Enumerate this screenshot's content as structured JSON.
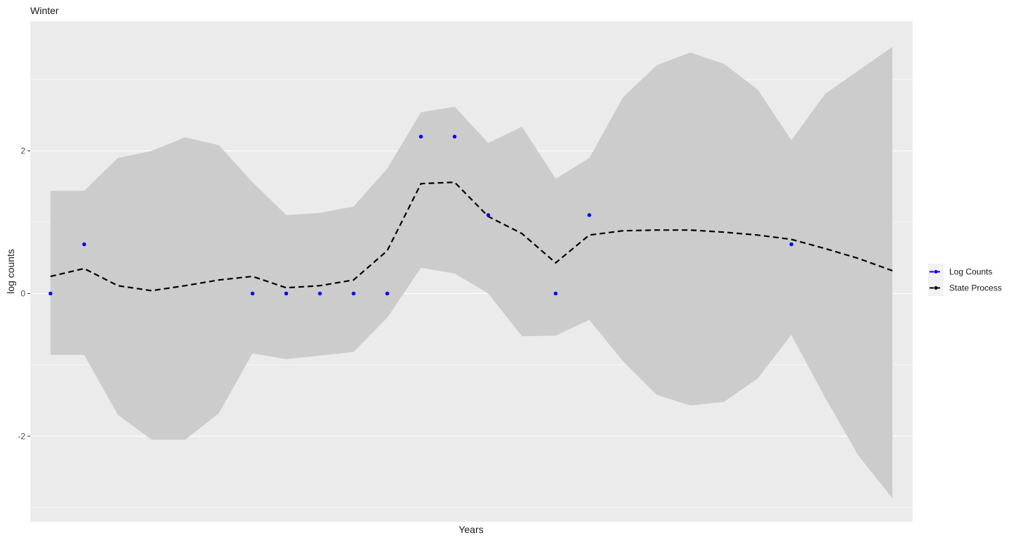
{
  "chart_data": {
    "type": "line",
    "title": "Winter",
    "xlabel": "Years",
    "ylabel": "log counts",
    "x": [
      1,
      2,
      3,
      4,
      5,
      6,
      7,
      8,
      9,
      10,
      11,
      12,
      13,
      14,
      15,
      16,
      17,
      18,
      19,
      20,
      21,
      22,
      23,
      24,
      25,
      26
    ],
    "xlim": [
      0.4,
      26.6
    ],
    "ylim": [
      -3.2,
      3.82
    ],
    "y_ticks": [
      -2,
      0,
      2
    ],
    "y_tick_labels": [
      "-2",
      "0",
      "2"
    ],
    "x_ticks": [],
    "grid": true,
    "legend_position": "right",
    "series": [
      {
        "name": "Log Counts",
        "style": "points",
        "color": "#0000ff",
        "x": [
          1,
          2,
          7,
          8,
          9,
          10,
          11,
          12,
          13,
          14,
          16,
          17,
          23
        ],
        "values": [
          0,
          0.69,
          0,
          0,
          0,
          0,
          0,
          2.2,
          2.2,
          1.1,
          0,
          1.1,
          0.69
        ]
      },
      {
        "name": "State Process",
        "style": "dashed-line",
        "color": "#000000",
        "x": [
          1,
          2,
          3,
          4,
          5,
          6,
          7,
          8,
          9,
          10,
          11,
          12,
          13,
          14,
          15,
          16,
          17,
          18,
          19,
          20,
          21,
          22,
          23,
          24,
          25,
          26
        ],
        "values": [
          0.24,
          0.35,
          0.11,
          0.04,
          0.11,
          0.19,
          0.24,
          0.08,
          0.11,
          0.19,
          0.6,
          1.54,
          1.56,
          1.08,
          0.84,
          0.43,
          0.82,
          0.88,
          0.89,
          0.89,
          0.86,
          0.82,
          0.76,
          0.63,
          0.49,
          0.32
        ]
      }
    ],
    "ribbon": {
      "color": "#cccccc",
      "lower": [
        -0.86,
        -0.86,
        -1.7,
        -2.05,
        -2.05,
        -1.68,
        -0.84,
        -0.92,
        -0.87,
        -0.82,
        -0.34,
        0.36,
        0.28,
        0,
        -0.6,
        -0.59,
        -0.37,
        -0.95,
        -1.42,
        -1.57,
        -1.52,
        -1.19,
        -0.58,
        -1.46,
        -2.28,
        -2.87
      ],
      "upper": [
        1.44,
        1.44,
        1.9,
        2.0,
        2.19,
        2.08,
        1.56,
        1.1,
        1.13,
        1.22,
        1.75,
        2.54,
        2.62,
        2.11,
        2.34,
        1.61,
        1.9,
        2.75,
        3.2,
        3.38,
        3.22,
        2.86,
        2.15,
        2.8,
        3.13,
        3.46
      ]
    },
    "colors": {
      "panel_background": "#ebebeb",
      "gridline": "#ffffff",
      "ribbon": "#cccccc",
      "points": "#0000ff",
      "line": "#000000"
    }
  }
}
